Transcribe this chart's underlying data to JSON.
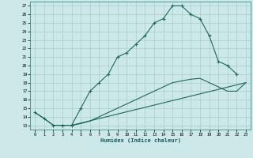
{
  "xlabel": "Humidex (Indice chaleur)",
  "bg_color": "#cce8e8",
  "line_color": "#1a6a5a",
  "grid_color": "#aacccc",
  "xlim": [
    -0.5,
    23.5
  ],
  "ylim": [
    12.5,
    27.5
  ],
  "xticks": [
    0,
    1,
    2,
    3,
    4,
    5,
    6,
    7,
    8,
    9,
    10,
    11,
    12,
    13,
    14,
    15,
    16,
    17,
    18,
    19,
    20,
    21,
    22,
    23
  ],
  "yticks": [
    13,
    14,
    15,
    16,
    17,
    18,
    19,
    20,
    21,
    22,
    23,
    24,
    25,
    26,
    27
  ],
  "line1_x": [
    0,
    1,
    2,
    3,
    4,
    5,
    6,
    7,
    8,
    9,
    10,
    11,
    12,
    13,
    14,
    15,
    16,
    17,
    18,
    19,
    20,
    21,
    22
  ],
  "line1_y": [
    14.5,
    13.8,
    13.0,
    13.0,
    13.0,
    15.0,
    17.0,
    18.0,
    19.0,
    21.0,
    21.5,
    22.5,
    23.5,
    25.0,
    25.5,
    27.0,
    27.0,
    26.0,
    25.5,
    23.5,
    20.5,
    20.0,
    19.0
  ],
  "line2_x": [
    0,
    1,
    2,
    3,
    4,
    23
  ],
  "line2_y": [
    14.5,
    13.8,
    13.0,
    13.0,
    13.0,
    18.0
  ],
  "line3_x": [
    4,
    5,
    6,
    7,
    8,
    9,
    10,
    11,
    12,
    13,
    14,
    15,
    16,
    17,
    18,
    19,
    20,
    21,
    22,
    23
  ],
  "line3_y": [
    13.0,
    13.2,
    13.5,
    14.0,
    14.5,
    15.0,
    15.5,
    16.0,
    16.5,
    17.0,
    17.5,
    18.0,
    18.2,
    18.4,
    18.5,
    18.0,
    17.5,
    17.0,
    17.0,
    18.0
  ]
}
